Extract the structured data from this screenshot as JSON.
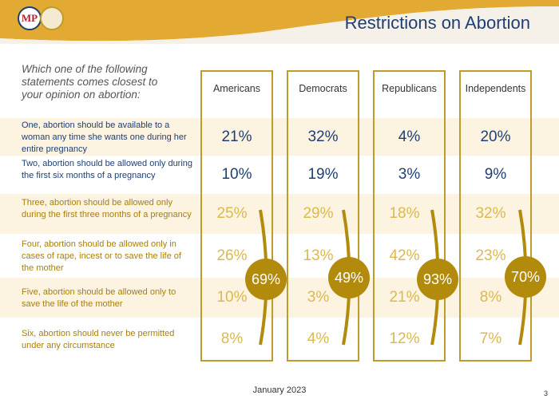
{
  "header": {
    "title": "Restrictions on Abortion",
    "logo_text": "MP"
  },
  "question": "Which one of the following statements comes closest to your opinion on abortion:",
  "columns": [
    "Americans",
    "Democrats",
    "Republicans",
    "Independents"
  ],
  "rows": [
    {
      "label": "One, abortion should be available to a woman any time she wants one during her entire pregnancy",
      "values": [
        "21%",
        "32%",
        "4%",
        "20%"
      ]
    },
    {
      "label": "Two, abortion should be allowed only during the first six months of a pregnancy",
      "values": [
        "10%",
        "19%",
        "3%",
        "9%"
      ]
    },
    {
      "label": "Three, abortion should be allowed only during the first three months of a pregnancy",
      "values": [
        "25%",
        "29%",
        "18%",
        "32%"
      ]
    },
    {
      "label": "Four, abortion should be allowed only in cases of rape, incest or to save the life of the mother",
      "values": [
        "26%",
        "13%",
        "42%",
        "23%"
      ]
    },
    {
      "label": "Five, abortion should be allowed only to save the life of the mother",
      "values": [
        "10%",
        "3%",
        "21%",
        "8%"
      ]
    },
    {
      "label": "Six, abortion should never be permitted under any circumstance",
      "values": [
        "8%",
        "4%",
        "12%",
        "7%"
      ]
    }
  ],
  "totals": [
    "69%",
    "49%",
    "93%",
    "70%"
  ],
  "footer": "January 2023",
  "page_number": "3",
  "colors": {
    "navy": "#1f3f73",
    "gold": "#b28a0c",
    "light_gold": "#dcb850",
    "band": "#fdf3e1"
  }
}
